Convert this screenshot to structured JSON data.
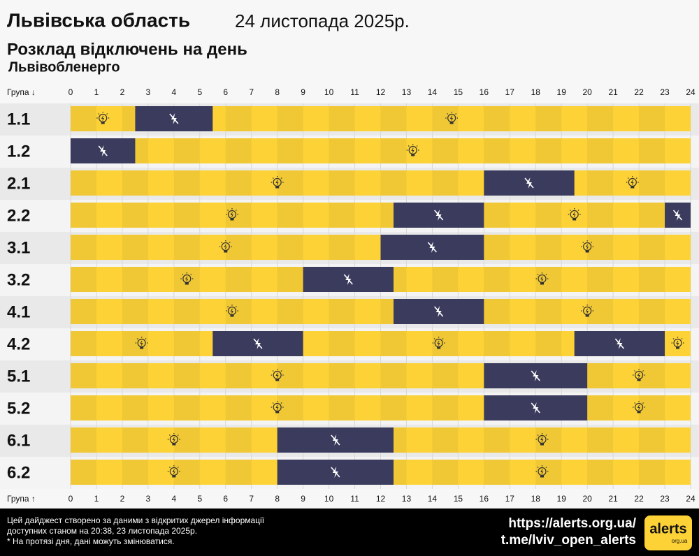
{
  "chart_data": {
    "type": "gantt",
    "title": "Львівська область",
    "date": "24 листопада 2025р.",
    "subtitle": "Розклад відключень на день",
    "provider": "Львівобленерго",
    "group_header_top": "Група ↓",
    "group_header_bottom": "Група ↑",
    "xlim": [
      0,
      24
    ],
    "xticks": [
      0,
      1,
      2,
      3,
      4,
      5,
      6,
      7,
      8,
      9,
      10,
      11,
      12,
      13,
      14,
      15,
      16,
      17,
      18,
      19,
      20,
      21,
      22,
      23,
      24
    ],
    "power_color": "#fdd237",
    "outage_color": "#3b3b5e",
    "series": [
      {
        "name": "1.1",
        "outages": [
          [
            2.5,
            5.5
          ]
        ]
      },
      {
        "name": "1.2",
        "outages": [
          [
            0,
            2.5
          ]
        ]
      },
      {
        "name": "2.1",
        "outages": [
          [
            16,
            19.5
          ]
        ]
      },
      {
        "name": "2.2",
        "outages": [
          [
            12.5,
            16
          ],
          [
            23,
            24
          ]
        ]
      },
      {
        "name": "3.1",
        "outages": [
          [
            12,
            16
          ]
        ]
      },
      {
        "name": "3.2",
        "outages": [
          [
            9,
            12.5
          ]
        ]
      },
      {
        "name": "4.1",
        "outages": [
          [
            12.5,
            16
          ]
        ]
      },
      {
        "name": "4.2",
        "outages": [
          [
            5.5,
            9
          ],
          [
            19.5,
            23
          ]
        ]
      },
      {
        "name": "5.1",
        "outages": [
          [
            16,
            20
          ]
        ]
      },
      {
        "name": "5.2",
        "outages": [
          [
            16,
            20
          ]
        ]
      },
      {
        "name": "6.1",
        "outages": [
          [
            8,
            12.5
          ]
        ]
      },
      {
        "name": "6.2",
        "outages": [
          [
            8,
            12.5
          ]
        ]
      }
    ],
    "footer": {
      "note_lines": [
        "Цей дайджест створено за даними з відкритих джерел інформації",
        "доступних станом на 20:38, 23 листопада 2025р.",
        "* На протязі дня, дані можуть змінюватися."
      ],
      "links": [
        "https://alerts.org.ua/",
        "t.me/lviv_open_alerts"
      ],
      "logo": "alerts",
      "logo_sub": "org.ua"
    }
  }
}
